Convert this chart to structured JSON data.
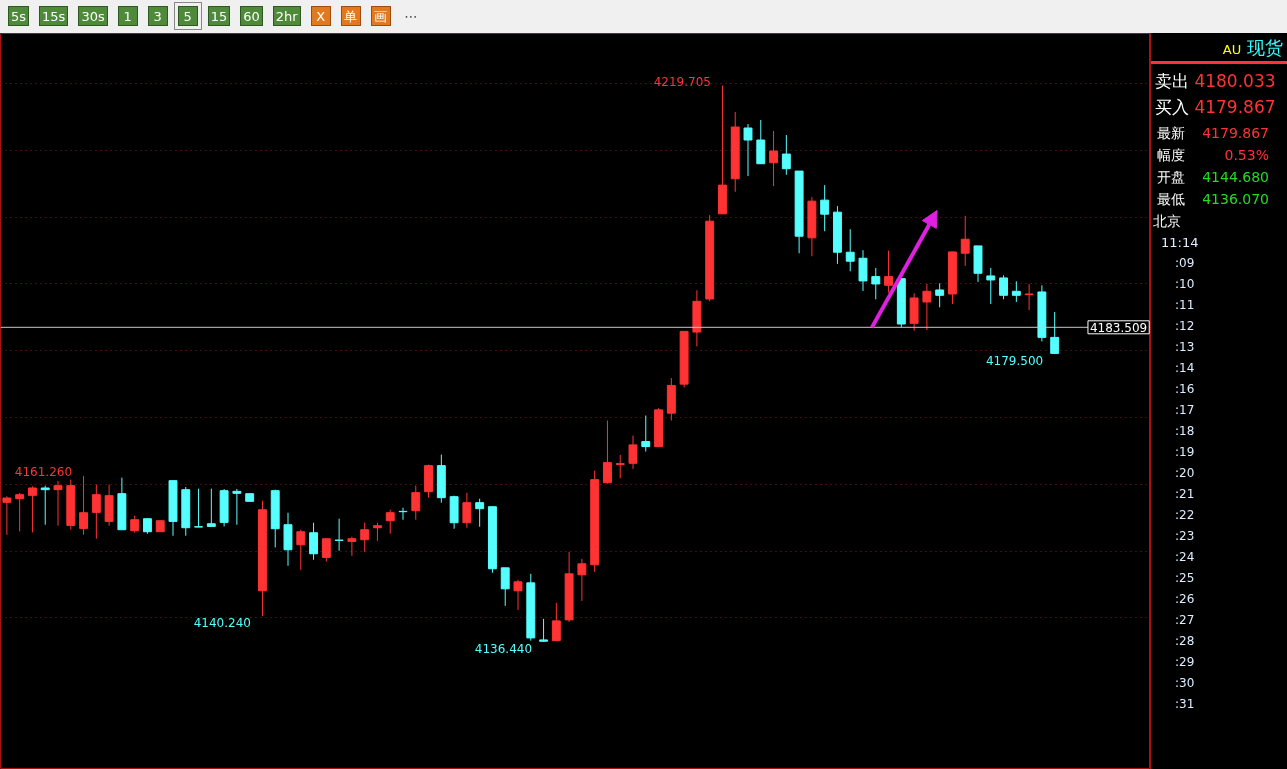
{
  "chart_data": {
    "type": "candlestick",
    "categories": [
      null,
      null,
      null,
      null,
      null,
      null,
      null,
      null,
      null,
      null,
      null,
      null,
      null,
      null,
      null,
      null,
      null,
      null,
      null,
      null,
      null,
      null,
      null,
      null,
      null,
      null,
      null,
      null,
      null,
      null,
      null,
      null,
      null,
      null,
      null,
      null,
      null,
      null,
      null,
      null,
      null,
      null,
      null,
      null,
      null,
      null,
      null,
      null,
      null,
      null,
      null,
      null,
      null,
      null,
      null,
      null,
      null,
      null,
      null,
      null,
      null,
      null,
      null,
      null,
      null,
      null,
      null,
      null,
      null,
      null,
      null,
      null,
      null,
      null,
      null,
      null,
      null,
      null,
      null,
      null,
      null,
      null,
      null
    ],
    "ohlc": [
      [
        4157.3,
        4158.2,
        4152.45,
        4157.95
      ],
      [
        4157.85,
        4158.7,
        4152.95,
        4158.45
      ],
      [
        4158.35,
        4159.7,
        4152.8,
        4159.45
      ],
      [
        4159.45,
        4159.8,
        4153.95,
        4159.2
      ],
      [
        4159.2,
        4160.5,
        4153.8,
        4159.8
      ],
      [
        4153.85,
        4160.7,
        4153.2,
        4159.8
      ],
      [
        4153.4,
        4161.26,
        4152.45,
        4155.75
      ],
      [
        4155.8,
        4159.95,
        4151.85,
        4158.45
      ],
      [
        4154.45,
        4159.95,
        4153.8,
        4158.3
      ],
      [
        4158.6,
        4161.0,
        4153.2,
        4153.2
      ],
      [
        4153.05,
        4155.3,
        4152.75,
        4154.7
      ],
      [
        4154.85,
        4154.85,
        4152.6,
        4152.9
      ],
      [
        4152.9,
        4154.55,
        4152.9,
        4154.55
      ],
      [
        4160.55,
        4160.55,
        4152.3,
        4154.45
      ],
      [
        4159.2,
        4159.6,
        4152.3,
        4153.5
      ],
      [
        4153.65,
        4159.35,
        4153.6,
        4153.6
      ],
      [
        4154.1,
        4159.35,
        4153.7,
        4153.7
      ],
      [
        4159.05,
        4159.3,
        4153.7,
        4154.3
      ],
      [
        4158.95,
        4159.3,
        4153.95,
        4158.65
      ],
      [
        4158.6,
        4158.6,
        4157.45,
        4157.45
      ],
      [
        4144.05,
        4157.55,
        4140.24,
        4156.2
      ],
      [
        4159.05,
        4159.2,
        4150.55,
        4153.35
      ],
      [
        4153.95,
        4155.75,
        4147.8,
        4150.2
      ],
      [
        4150.95,
        4153.2,
        4147.2,
        4152.9
      ],
      [
        4152.75,
        4154.25,
        4148.7,
        4149.6
      ],
      [
        4149.05,
        4151.85,
        4148.45,
        4151.85
      ],
      [
        4151.65,
        4154.85,
        4150.05,
        4151.6
      ],
      [
        4151.45,
        4152.15,
        4149.3,
        4151.85
      ],
      [
        4151.7,
        4154.25,
        4149.9,
        4153.2
      ],
      [
        4153.5,
        4154.25,
        4151.55,
        4153.8
      ],
      [
        4154.55,
        4156.2,
        4152.6,
        4155.75
      ],
      [
        4155.95,
        4156.5,
        4154.7,
        4155.9
      ],
      [
        4156.05,
        4159.8,
        4154.7,
        4158.75
      ],
      [
        4158.9,
        4162.95,
        4158.0,
        4162.8
      ],
      [
        4162.8,
        4164.45,
        4157.25,
        4158.0
      ],
      [
        4158.15,
        4158.3,
        4153.35,
        4154.25
      ],
      [
        4154.25,
        4158.75,
        4153.5,
        4157.25
      ],
      [
        4157.25,
        4157.85,
        4153.65,
        4156.35
      ],
      [
        4156.65,
        4156.65,
        4146.75,
        4147.35
      ],
      [
        4147.5,
        4147.5,
        4141.8,
        4144.35
      ],
      [
        4144.05,
        4145.7,
        4141.2,
        4145.4
      ],
      [
        4145.25,
        4146.6,
        4136.6,
        4137.0
      ],
      [
        4136.7,
        4139.85,
        4136.44,
        4136.5
      ],
      [
        4136.6,
        4142.25,
        4136.5,
        4139.55
      ],
      [
        4139.7,
        4149.9,
        4139.4,
        4146.6
      ],
      [
        4146.45,
        4148.85,
        4142.55,
        4148.1
      ],
      [
        4147.95,
        4162.05,
        4146.9,
        4160.7
      ],
      [
        4160.25,
        4169.55,
        4160.1,
        4163.25
      ],
      [
        4162.95,
        4164.4,
        4160.9,
        4163.1
      ],
      [
        4163.15,
        4167.3,
        4162.3,
        4165.9
      ],
      [
        4166.4,
        4170.3,
        4164.9,
        4165.65
      ],
      [
        4165.65,
        4171.4,
        4165.65,
        4171.15
      ],
      [
        4170.65,
        4175.9,
        4169.55,
        4174.8
      ],
      [
        4175.0,
        4182.9,
        4174.5,
        4182.9
      ],
      [
        4182.8,
        4189.05,
        4180.65,
        4187.4
      ],
      [
        4187.75,
        4200.3,
        4187.4,
        4199.4
      ],
      [
        4200.5,
        4219.705,
        4200.5,
        4204.8
      ],
      [
        4205.75,
        4215.75,
        4203.8,
        4213.5
      ],
      [
        4213.35,
        4213.95,
        4206.15,
        4211.55
      ],
      [
        4211.55,
        4214.55,
        4208.0,
        4208.0
      ],
      [
        4208.15,
        4212.9,
        4204.65,
        4209.9
      ],
      [
        4209.45,
        4212.3,
        4206.35,
        4207.25
      ],
      [
        4206.9,
        4206.9,
        4194.6,
        4197.15
      ],
      [
        4196.9,
        4203.0,
        4194.15,
        4202.4
      ],
      [
        4202.55,
        4204.8,
        4197.9,
        4200.45
      ],
      [
        4200.75,
        4201.65,
        4193.0,
        4194.75
      ],
      [
        4194.75,
        4198.2,
        4191.9,
        4193.4
      ],
      [
        4193.85,
        4195.05,
        4188.95,
        4190.45
      ],
      [
        4191.1,
        4192.4,
        4187.7,
        4190.0
      ],
      [
        4189.8,
        4195.0,
        4188.7,
        4191.1
      ],
      [
        4190.8,
        4190.8,
        4183.5,
        4184.0
      ],
      [
        4184.1,
        4188.6,
        4183.0,
        4187.9
      ],
      [
        4187.3,
        4190.0,
        4183.1,
        4188.9
      ],
      [
        4189.1,
        4190.1,
        4186.5,
        4188.3
      ],
      [
        4188.5,
        4194.8,
        4187.0,
        4194.8
      ],
      [
        4194.6,
        4200.2,
        4192.7,
        4196.7
      ],
      [
        4195.7,
        4195.7,
        4190.3,
        4191.6
      ],
      [
        4191.2,
        4192.4,
        4187.0,
        4190.6
      ],
      [
        4190.9,
        4191.3,
        4187.7,
        4188.3
      ],
      [
        4188.9,
        4190.4,
        4187.3,
        4188.3
      ],
      [
        4188.4,
        4190.0,
        4186.1,
        4188.5
      ],
      [
        4188.8,
        4189.8,
        4181.4,
        4182.0
      ],
      [
        4182.0,
        4185.8,
        4179.5,
        4179.6
      ]
    ],
    "colors": [
      "#ff3333",
      "#ff3333",
      "#ff3333",
      "#55ffff",
      "#ff3333",
      "#ff3333",
      "#ff3333",
      "#ff3333",
      "#ff3333",
      "#55ffff",
      "#ff3333",
      "#55ffff",
      "#ff3333",
      "#55ffff",
      "#55ffff",
      "#55ffff",
      "#55ffff",
      "#55ffff",
      "#55ffff",
      "#55ffff",
      "#ff3333",
      "#55ffff",
      "#55ffff",
      "#ff3333",
      "#55ffff",
      "#ff3333",
      "#55ffff",
      "#ff3333",
      "#ff3333",
      "#ff3333",
      "#ff3333",
      "#55ffff",
      "#ff3333",
      "#ff3333",
      "#55ffff",
      "#55ffff",
      "#ff3333",
      "#55ffff",
      "#55ffff",
      "#55ffff",
      "#ff3333",
      "#55ffff",
      "#55ffff",
      "#ff3333",
      "#ff3333",
      "#ff3333",
      "#ff3333",
      "#ff3333",
      "#ff3333",
      "#ff3333",
      "#55ffff",
      "#ff3333",
      "#ff3333",
      "#ff3333",
      "#ff3333",
      "#ff3333",
      "#ff3333",
      "#ff3333",
      "#55ffff",
      "#55ffff",
      "#ff3333",
      "#55ffff",
      "#55ffff",
      "#ff3333",
      "#55ffff",
      "#55ffff",
      "#55ffff",
      "#55ffff",
      "#55ffff",
      "#ff3333",
      "#55ffff",
      "#ff3333",
      "#ff3333",
      "#55ffff",
      "#ff3333",
      "#ff3333",
      "#55ffff",
      "#55ffff",
      "#55ffff",
      "#55ffff",
      "#ff3333",
      "#55ffff",
      "#55ffff"
    ],
    "ylim": [
      4117.3,
      4227.5
    ],
    "yticks": [
      {
        "value": 4140,
        "label": null
      },
      {
        "value": 4150,
        "label": null
      },
      {
        "value": 4160,
        "label": null
      },
      {
        "value": 4170,
        "label": null
      },
      {
        "value": 4180,
        "label": null
      },
      {
        "value": 4190,
        "label": null
      },
      {
        "value": 4200,
        "label": null
      },
      {
        "value": 4210,
        "label": null
      },
      {
        "value": 4220,
        "label": null
      }
    ],
    "grid": "y",
    "tick_labels": false,
    "ref_lines": [
      {
        "axis": "y",
        "value": 4183.509,
        "label": "4183.509",
        "color": "#c8c8c8"
      }
    ],
    "annotations": [
      "4219.705",
      "4161.260",
      "4140.240",
      "4136.440",
      "4179.500",
      "5s",
      "15s",
      "30s",
      "1",
      "3",
      "5",
      "15",
      "60",
      "2hr",
      "X",
      "单",
      "画",
      "⋯",
      "AU",
      "现货",
      "卖出",
      "4180.033",
      "买入",
      "4179.867",
      "最新",
      "4179.867",
      "幅度",
      "0.53%",
      "开盘",
      "4144.680",
      "最低",
      "4136.070",
      "北京",
      "11:14",
      ":09",
      ":10",
      ":11",
      ":12",
      ":13",
      ":14",
      ":16",
      ":17",
      ":18",
      ":19",
      ":20",
      ":21",
      ":22",
      ":23",
      ":24",
      ":25",
      ":26",
      ":27",
      ":28",
      ":29",
      ":30",
      ":31"
    ]
  }
}
